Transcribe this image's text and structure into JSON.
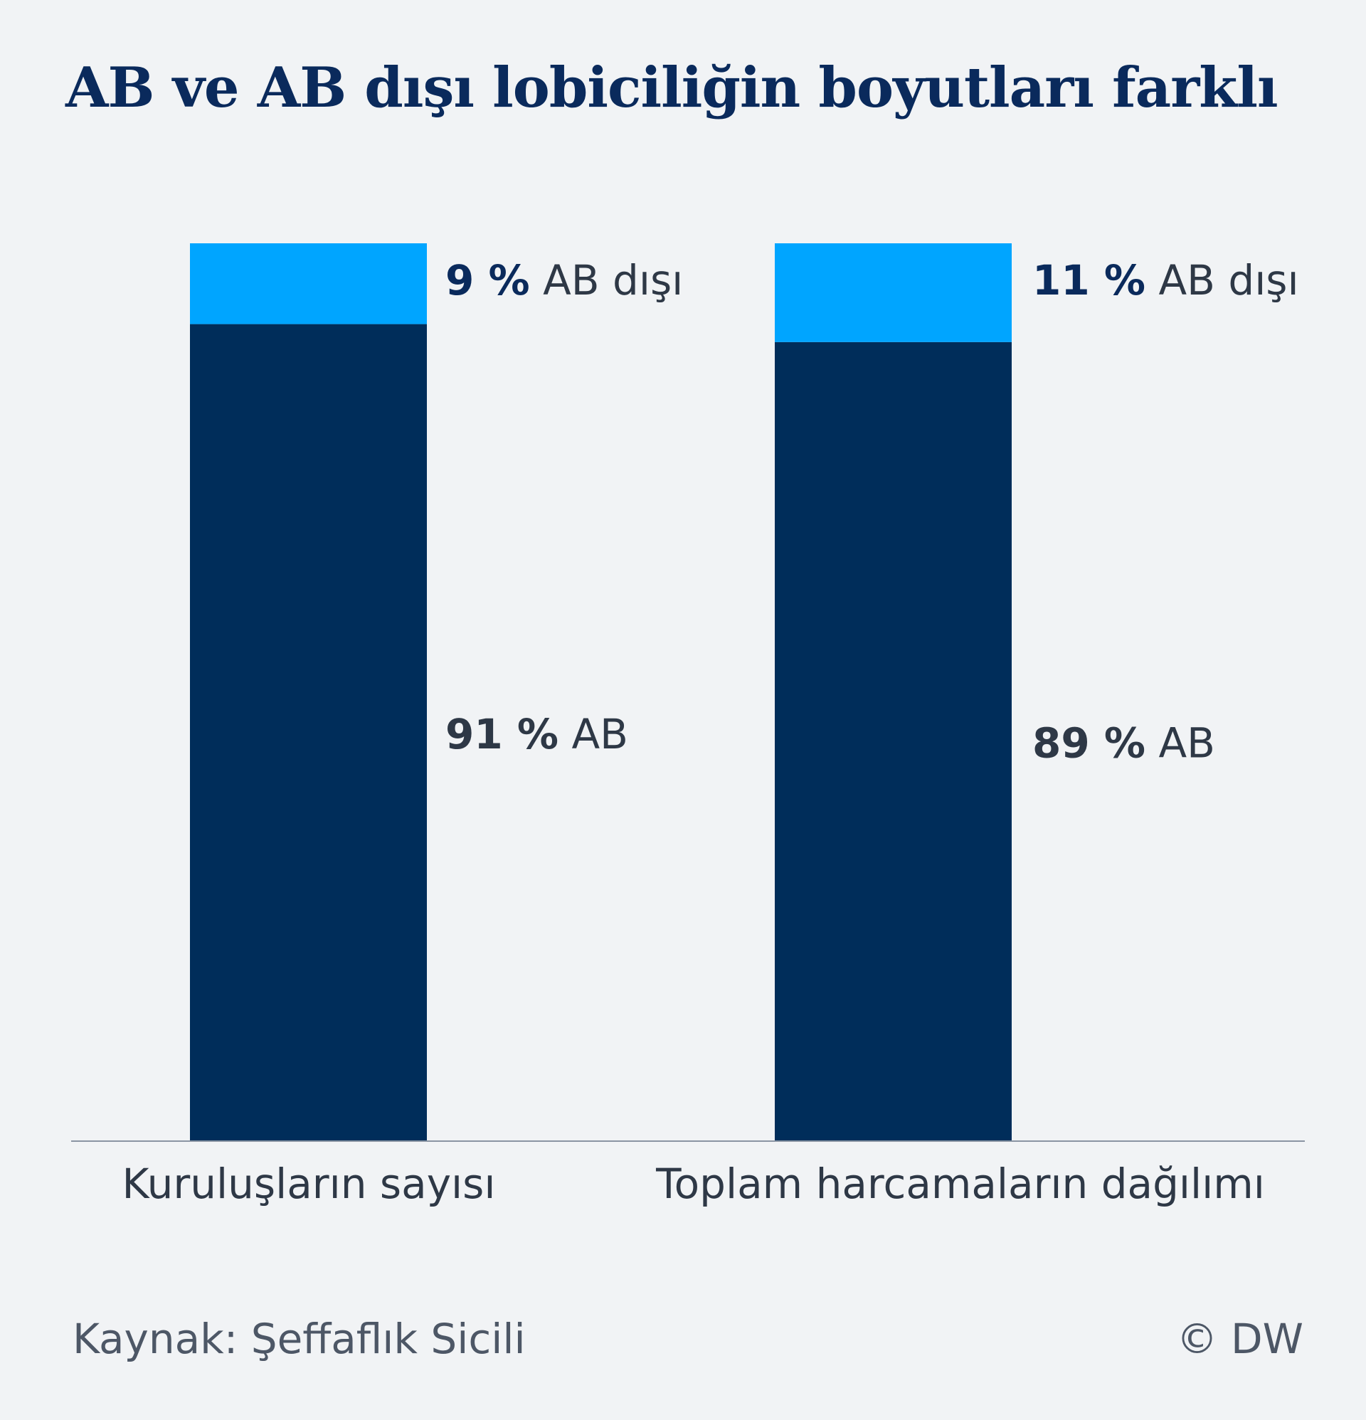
{
  "chart_data": {
    "type": "bar",
    "stacked": true,
    "title": "AB ve AB dışı lobiciliğin boyutları farklı",
    "categories": [
      "Kuruluşların sayısı",
      "Toplam harcamaların dağılımı"
    ],
    "series": [
      {
        "name": "AB",
        "values": [
          91,
          89
        ],
        "color": "#002d5a",
        "labels": [
          {
            "value": "91 %",
            "text": "AB"
          },
          {
            "value": "89 %",
            "text": "AB"
          }
        ]
      },
      {
        "name": "AB dışı",
        "values": [
          9,
          11
        ],
        "color": "#00a5ff",
        "labels": [
          {
            "value": "9 %",
            "text": "AB dışı"
          },
          {
            "value": "11 %",
            "text": "AB dışı"
          }
        ]
      }
    ],
    "ylim": [
      0,
      100
    ],
    "grid": false,
    "legend": "none"
  },
  "footer": {
    "source": "Kaynak: Şeffaflık Sicili",
    "credit": "© DW"
  }
}
